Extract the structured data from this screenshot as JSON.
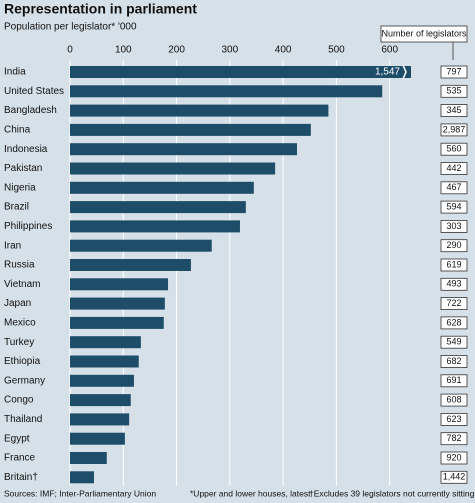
{
  "chart_data": {
    "type": "bar",
    "orientation": "horizontal",
    "title": "Representation in parliament",
    "subtitle": "Population per legislator* '000",
    "categories": [
      "India",
      "United States",
      "Bangladesh",
      "China",
      "Indonesia",
      "Pakistan",
      "Nigeria",
      "Brazil",
      "Philippines",
      "Iran",
      "Russia",
      "Vietnam",
      "Japan",
      "Mexico",
      "Turkey",
      "Ethiopia",
      "Germany",
      "Congo",
      "Thailand",
      "Egypt",
      "France",
      "Britain†"
    ],
    "values": [
      1547,
      586,
      485,
      452,
      426,
      385,
      345,
      330,
      319,
      266,
      227,
      184,
      178,
      176,
      133,
      129,
      120,
      114,
      111,
      103,
      69,
      45
    ],
    "value_labels": [
      "1,547",
      null,
      null,
      null,
      null,
      null,
      null,
      null,
      null,
      null,
      null,
      null,
      null,
      null,
      null,
      null,
      null,
      null,
      null,
      null,
      null,
      null
    ],
    "color": "#1d4d68",
    "xlim": [
      0,
      640
    ],
    "xticks": [
      0,
      100,
      200,
      300,
      400,
      500,
      600
    ],
    "grid": true,
    "legislators": {
      "name": "Number of legislators",
      "values": [
        797,
        535,
        345,
        2987,
        560,
        442,
        467,
        594,
        303,
        290,
        619,
        493,
        722,
        628,
        549,
        682,
        691,
        608,
        623,
        782,
        920,
        1442
      ],
      "value_labels": [
        "797",
        "535",
        "345",
        "2,987",
        "560",
        "442",
        "467",
        "594",
        "303",
        "290",
        "619",
        "493",
        "722",
        "628",
        "549",
        "682",
        "691",
        "608",
        "623",
        "782",
        "920",
        "1,442"
      ]
    },
    "footnotes": [
      "Sources: IMF; Inter-Parliamentary Union",
      "*Upper and lower houses, latest",
      "†Excludes 39 legislators not currently sitting"
    ]
  }
}
